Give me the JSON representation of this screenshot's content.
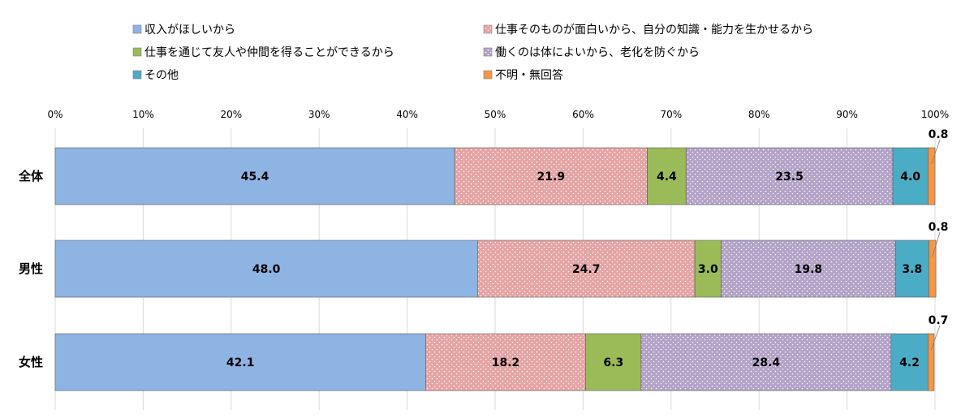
{
  "chart_data": {
    "type": "bar",
    "orientation": "horizontal",
    "stacked": "percent",
    "categories": [
      "全体",
      "男性",
      "女性"
    ],
    "series": [
      {
        "name": "収入がほしいから",
        "values": [
          45.4,
          48.0,
          42.1
        ],
        "color": "#8EB4E3",
        "pattern": "none"
      },
      {
        "name": "仕事そのものが面白いから、自分の知識・能力を生かせるから",
        "values": [
          21.9,
          24.7,
          18.2
        ],
        "color": "#E6A3A3",
        "pattern": "dots"
      },
      {
        "name": "仕事を通じて友人や仲間を得ることができるから",
        "values": [
          4.4,
          3.0,
          6.3
        ],
        "color": "#9BBB59",
        "pattern": "none"
      },
      {
        "name": "働くのは体によいから、老化を防ぐから",
        "values": [
          23.5,
          19.8,
          28.4
        ],
        "color": "#B3A2C7",
        "pattern": "dots"
      },
      {
        "name": "その他",
        "values": [
          4.0,
          3.8,
          4.2
        ],
        "color": "#4BACC6",
        "pattern": "none"
      },
      {
        "name": "不明・無回答",
        "values": [
          0.8,
          0.8,
          0.7
        ],
        "color": "#F79646",
        "pattern": "none"
      }
    ],
    "value_labels": [
      [
        "45.4",
        "21.9",
        "4.4",
        "23.5",
        "4.0",
        "0.8"
      ],
      [
        "48.0",
        "24.7",
        "3.0",
        "19.8",
        "3.8",
        "0.8"
      ],
      [
        "42.1",
        "18.2",
        "6.3",
        "28.4",
        "4.2",
        "0.7"
      ]
    ],
    "x_ticks": [
      "0%",
      "10%",
      "20%",
      "30%",
      "40%",
      "50%",
      "60%",
      "70%",
      "80%",
      "90%",
      "100%"
    ],
    "xlim": [
      0,
      100
    ],
    "grid": true,
    "legend": "top",
    "title": "",
    "xlabel": "",
    "ylabel": ""
  }
}
